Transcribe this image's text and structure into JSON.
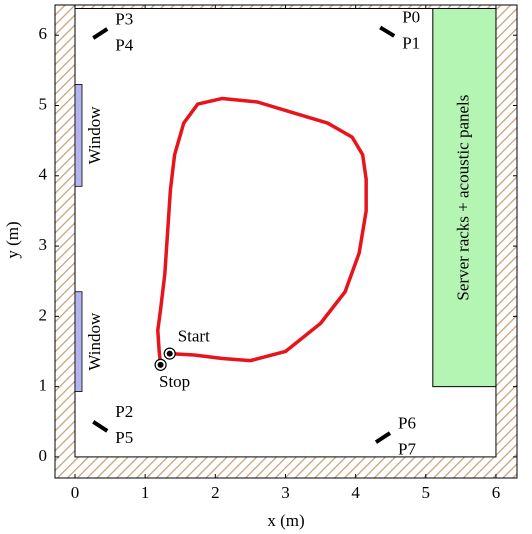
{
  "chart_data": {
    "type": "line",
    "xlabel": "x (m)",
    "ylabel": "y (m)",
    "xlim": [
      -0.285,
      6.3
    ],
    "ylim": [
      -0.3,
      6.43
    ],
    "xticks": [
      0,
      1,
      2,
      3,
      4,
      5,
      6
    ],
    "yticks": [
      0,
      1,
      2,
      3,
      4,
      5,
      6
    ],
    "room": {
      "x": [
        0,
        6
      ],
      "y": [
        0,
        6.38
      ]
    },
    "trajectory": {
      "color": "#e8141b",
      "x": [
        1.35,
        1.7,
        2.1,
        2.5,
        3.0,
        3.5,
        3.85,
        4.05,
        4.15,
        4.15,
        4.1,
        3.95,
        3.6,
        3.1,
        2.6,
        2.1,
        1.75,
        1.55,
        1.42,
        1.36,
        1.32,
        1.28,
        1.22,
        1.18,
        1.2,
        1.22
      ],
      "y": [
        1.47,
        1.45,
        1.4,
        1.37,
        1.5,
        1.9,
        2.35,
        2.9,
        3.5,
        3.95,
        4.3,
        4.55,
        4.75,
        4.9,
        5.05,
        5.1,
        5.02,
        4.75,
        4.3,
        3.8,
        3.2,
        2.6,
        2.1,
        1.8,
        1.5,
        1.31
      ]
    },
    "start": {
      "label": "Start",
      "x": 1.35,
      "y": 1.47
    },
    "stop": {
      "label": "Stop",
      "x": 1.22,
      "y": 1.31
    },
    "microphones": [
      {
        "labels": [
          "P0",
          "P1"
        ],
        "x": [
          4.35,
          4.55
        ],
        "y": [
          6.11,
          5.99
        ]
      },
      {
        "labels": [
          "P3",
          "P4"
        ],
        "x": [
          0.26,
          0.46
        ],
        "y": [
          5.96,
          6.09
        ]
      },
      {
        "labels": [
          "P2",
          "P5"
        ],
        "x": [
          0.26,
          0.46
        ],
        "y": [
          0.5,
          0.37
        ]
      },
      {
        "labels": [
          "P6",
          "P7"
        ],
        "x": [
          4.29,
          4.49
        ],
        "y": [
          0.21,
          0.34
        ]
      }
    ],
    "windows": [
      {
        "label": "Window",
        "x": [
          0,
          0.1
        ],
        "y": [
          3.85,
          5.3
        ],
        "color": "#b4b4f0"
      },
      {
        "label": "Window",
        "x": [
          0,
          0.1
        ],
        "y": [
          0.93,
          2.35
        ],
        "color": "#b4b4f0"
      }
    ],
    "racks": {
      "label": "Server racks + acoustic panels",
      "x": [
        5.1,
        6.0
      ],
      "y": [
        1.0,
        6.38
      ],
      "color": "#b4f5b4"
    }
  }
}
